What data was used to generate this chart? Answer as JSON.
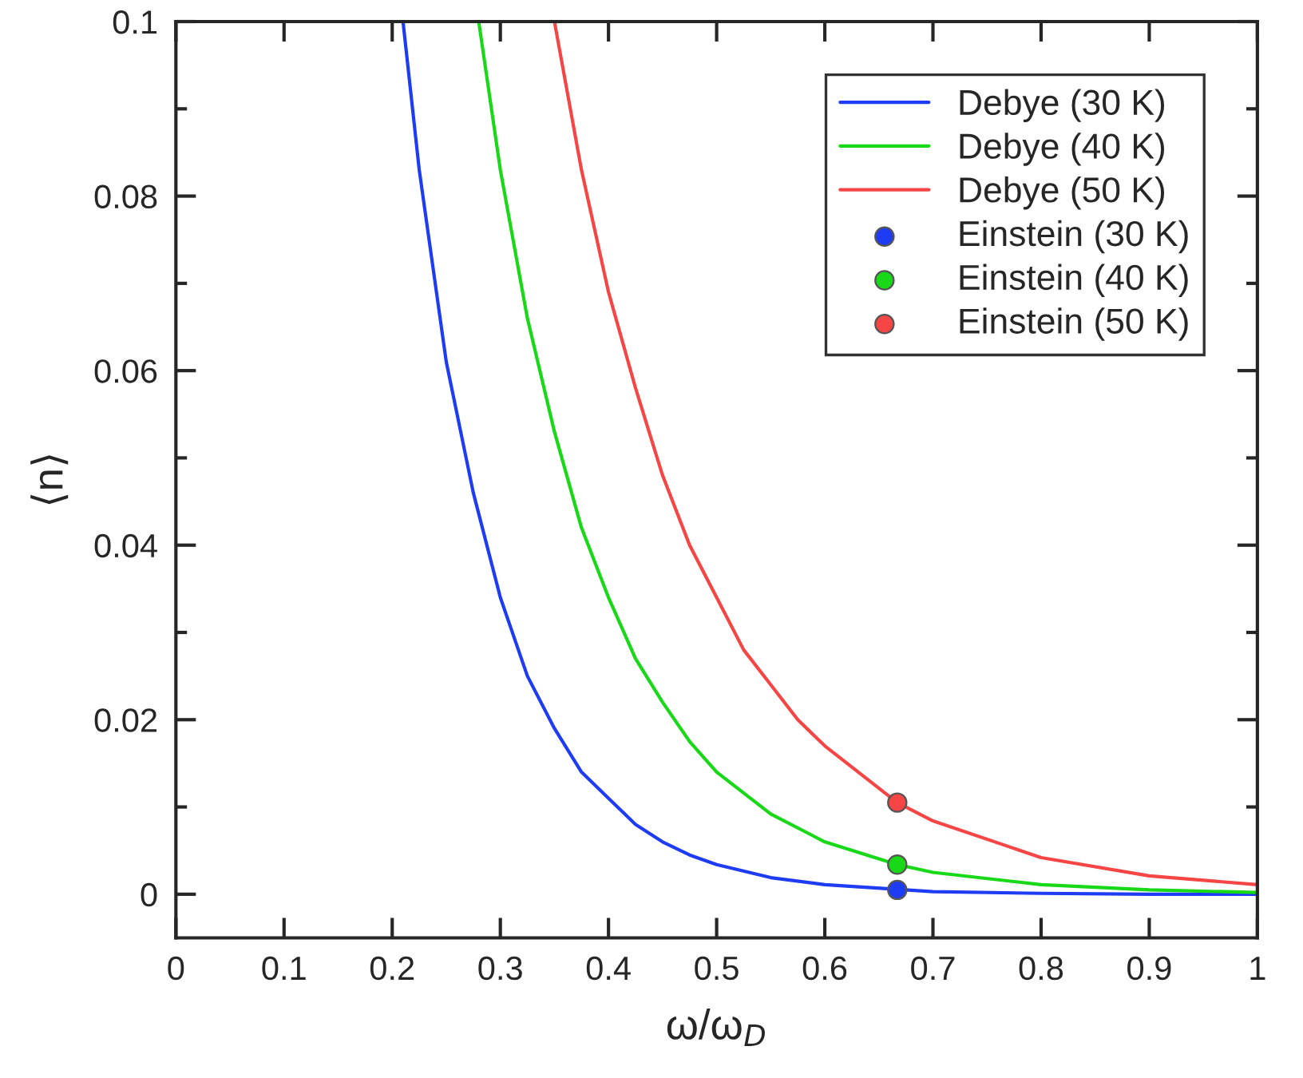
{
  "chart_data": {
    "type": "line",
    "xlabel": "ω/ω$_{D}$",
    "ylabel": "⟨n⟩",
    "xlim": [
      0,
      1
    ],
    "ylim": [
      -0.005,
      0.1
    ],
    "xticks": [
      0,
      0.1,
      0.2,
      0.3,
      0.4,
      0.5,
      0.6,
      0.7,
      0.8,
      0.9,
      1
    ],
    "yticks": [
      0,
      0.02,
      0.04,
      0.06,
      0.08,
      0.1
    ],
    "grid": false,
    "legend": "top right",
    "series": [
      {
        "name": "Debye (30 K)",
        "color": "#1f3cf5",
        "marker": "none",
        "x": [
          0.21,
          0.225,
          0.25,
          0.275,
          0.3,
          0.325,
          0.35,
          0.375,
          0.4,
          0.425,
          0.45,
          0.475,
          0.5,
          0.55,
          0.6,
          0.7,
          0.8,
          0.9,
          1.0
        ],
        "values": [
          0.1,
          0.083,
          0.061,
          0.046,
          0.034,
          0.025,
          0.019,
          0.014,
          0.011,
          0.008,
          0.006,
          0.0045,
          0.0034,
          0.0019,
          0.0011,
          0.0003,
          0.0001,
          0,
          0
        ]
      },
      {
        "name": "Debye (40 K)",
        "color": "#18d818",
        "marker": "none",
        "x": [
          0.28,
          0.3,
          0.325,
          0.35,
          0.375,
          0.4,
          0.425,
          0.45,
          0.475,
          0.5,
          0.55,
          0.6,
          0.667,
          0.7,
          0.8,
          0.9,
          1.0
        ],
        "values": [
          0.1,
          0.083,
          0.066,
          0.053,
          0.042,
          0.034,
          0.027,
          0.022,
          0.0175,
          0.014,
          0.0092,
          0.006,
          0.0034,
          0.0025,
          0.0011,
          0.0005,
          0.0002
        ]
      },
      {
        "name": "Debye (50 K)",
        "color": "#f54545",
        "marker": "none",
        "x": [
          0.35,
          0.375,
          0.4,
          0.425,
          0.45,
          0.475,
          0.5,
          0.525,
          0.55,
          0.575,
          0.6,
          0.667,
          0.7,
          0.8,
          0.9,
          1.0
        ],
        "values": [
          0.1,
          0.083,
          0.069,
          0.058,
          0.048,
          0.04,
          0.034,
          0.028,
          0.024,
          0.02,
          0.017,
          0.0105,
          0.0084,
          0.0042,
          0.0021,
          0.0011
        ]
      },
      {
        "name": "Einstein (30 K)",
        "type": "scatter",
        "color": "#1f3cf5",
        "marker": "circle",
        "x": [
          0.667
        ],
        "values": [
          0.0005
        ]
      },
      {
        "name": "Einstein (40 K)",
        "type": "scatter",
        "color": "#18d818",
        "marker": "circle",
        "x": [
          0.667
        ],
        "values": [
          0.0034
        ]
      },
      {
        "name": "Einstein (50 K)",
        "type": "scatter",
        "color": "#f54545",
        "marker": "circle",
        "x": [
          0.667
        ],
        "values": [
          0.0105
        ]
      }
    ]
  }
}
